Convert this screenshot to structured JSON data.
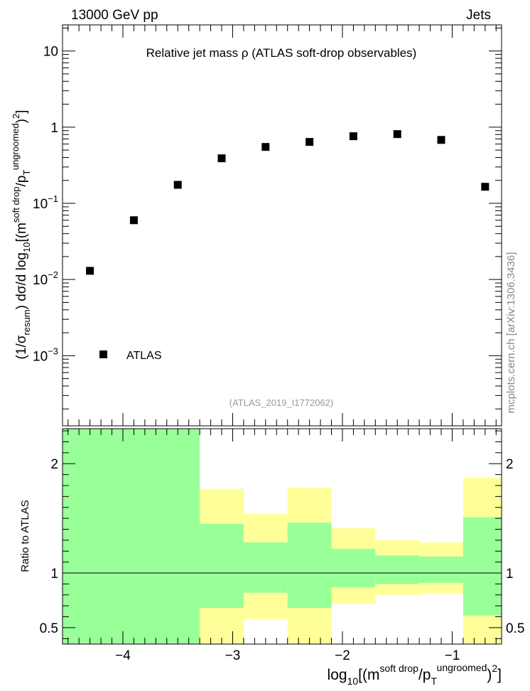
{
  "header": {
    "left": "13000 GeV pp",
    "right": "Jets",
    "side_label": "mcplots.cern.ch [arXiv:1306.3436]"
  },
  "chart_data": [
    {
      "type": "scatter",
      "title": "Relative jet mass  ρ (ATLAS soft-drop observables)",
      "watermark": "(ATLAS_2019_I1772062)",
      "ylabel_parts": {
        "open": "(1/σ",
        "sub1": "resum",
        "mid": ") dσ/d log",
        "sub2": "10",
        "bracket": "[(m",
        "sup1": "soft drop",
        "slash": "/p",
        "sub3": "T",
        "sup2": "ungroomed",
        "end": ")",
        "sup3": "2",
        "close": "]"
      },
      "y_scale": "log",
      "ylim": [
        0.00012,
        22
      ],
      "xlim": [
        -4.55,
        -0.55
      ],
      "y_ticks": [
        {
          "value": 10,
          "base": "10",
          "exp": ""
        },
        {
          "value": 1,
          "base": "1",
          "exp": ""
        },
        {
          "value": 0.1,
          "base": "10",
          "exp": "−1"
        },
        {
          "value": 0.01,
          "base": "10",
          "exp": "−2"
        },
        {
          "value": 0.001,
          "base": "10",
          "exp": "−3"
        }
      ],
      "legend": {
        "position": "bottom-left",
        "entries": [
          "ATLAS"
        ]
      },
      "series": [
        {
          "name": "ATLAS",
          "color": "#000000",
          "points": [
            {
              "x": -4.3,
              "y": 0.013
            },
            {
              "x": -3.9,
              "y": 0.06
            },
            {
              "x": -3.5,
              "y": 0.175
            },
            {
              "x": -3.1,
              "y": 0.39
            },
            {
              "x": -2.7,
              "y": 0.55
            },
            {
              "x": -2.3,
              "y": 0.64
            },
            {
              "x": -1.9,
              "y": 0.76
            },
            {
              "x": -1.5,
              "y": 0.81
            },
            {
              "x": -1.1,
              "y": 0.68
            },
            {
              "x": -0.7,
              "y": 0.165
            }
          ]
        }
      ]
    },
    {
      "type": "area",
      "ylabel": "Ratio to ATLAS",
      "xlabel_parts": {
        "pre": "log",
        "sub1": "10",
        "bracket": "[(m",
        "sup1": "soft drop",
        "slash": "/p",
        "sub2": "T",
        "sup2": "ungroomed",
        "end": ")",
        "sup3": "2",
        "close": "]"
      },
      "xlim": [
        -4.55,
        -0.55
      ],
      "ylim": [
        0.35,
        2.32
      ],
      "x_ticks": [
        {
          "value": -4,
          "label": "−4"
        },
        {
          "value": -3,
          "label": "−3"
        },
        {
          "value": -2,
          "label": "−2"
        },
        {
          "value": -1,
          "label": "−1"
        }
      ],
      "y_ticks": [
        {
          "value": 2,
          "label": "2"
        },
        {
          "value": 1,
          "label": "1"
        },
        {
          "value": 0.5,
          "label": "0.5"
        }
      ],
      "reference_line": 1,
      "bands": {
        "outer_color": "#ffff99",
        "inner_color": "#99ff99",
        "bins": [
          {
            "x0": -4.55,
            "x1": -3.3,
            "outer": [
              0.35,
              2.32
            ],
            "inner": [
              0.35,
              2.32
            ]
          },
          {
            "x0": -3.3,
            "x1": -2.9,
            "outer": [
              0.35,
              1.77
            ],
            "inner": [
              0.68,
              1.45
            ]
          },
          {
            "x0": -2.9,
            "x1": -2.5,
            "outer": [
              0.58,
              1.54
            ],
            "inner": [
              0.82,
              1.28
            ]
          },
          {
            "x0": -2.5,
            "x1": -2.1,
            "outer": [
              0.35,
              1.78
            ],
            "inner": [
              0.68,
              1.46
            ]
          },
          {
            "x0": -2.1,
            "x1": -1.7,
            "outer": [
              0.72,
              1.41
            ],
            "inner": [
              0.87,
              1.22
            ]
          },
          {
            "x0": -1.7,
            "x1": -1.3,
            "outer": [
              0.8,
              1.3
            ],
            "inner": [
              0.9,
              1.16
            ]
          },
          {
            "x0": -1.3,
            "x1": -0.9,
            "outer": [
              0.81,
              1.28
            ],
            "inner": [
              0.91,
              1.15
            ]
          },
          {
            "x0": -0.9,
            "x1": -0.55,
            "outer": [
              0.35,
              1.87
            ],
            "inner": [
              0.61,
              1.51
            ]
          }
        ]
      }
    }
  ]
}
